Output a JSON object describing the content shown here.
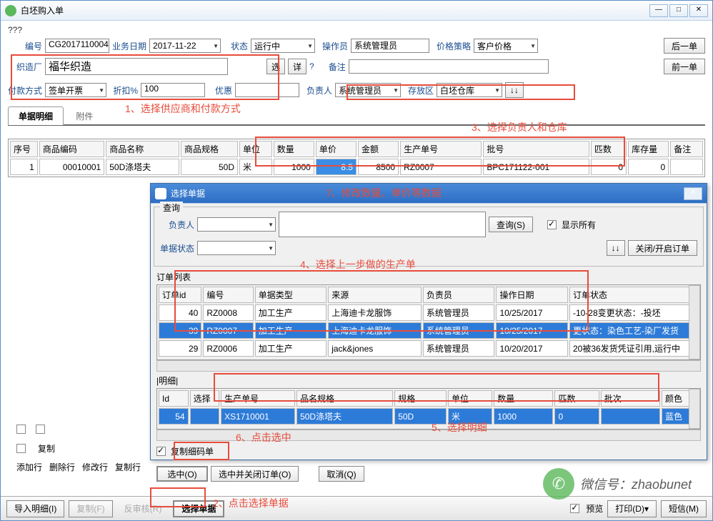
{
  "win": {
    "title": "白坯购入单",
    "min": "—",
    "max": "□",
    "close": "✕",
    "q": "???"
  },
  "hdr": {
    "no_lbl": "编号",
    "no": "CG2017110004",
    "date_lbl": "业务日期",
    "date": "2017-11-22",
    "state_lbl": "状态",
    "state": "运行中",
    "op_lbl": "操作员",
    "op": "系统管理员",
    "price_lbl": "价格策略",
    "price": "客户价格",
    "next": "后一单",
    "prev": "前一单",
    "maker_lbl": "织造厂",
    "maker": "福华织造",
    "sel": "选",
    "detail": "详",
    "help": "?",
    "memo_lbl": "备注",
    "pay_lbl": "付款方式",
    "pay": "签单开票",
    "disc_lbl": "折扣%",
    "disc": "100",
    "pref_lbl": "优惠",
    "resp_lbl": "负责人",
    "resp": "系统管理员",
    "store_lbl": "存放区",
    "store": "白坯仓库",
    "arrows": "↓↓"
  },
  "ann": {
    "a1": "1、选择供应商和付款方式",
    "a2": "2、点击选择单据",
    "a3": "3、选择负责人和仓库",
    "a4": "4、选择上一步做的生产单",
    "a5": "5、选择明细",
    "a6": "6、点击选中",
    "a7": "7、修改数量、单价等数据"
  },
  "tabs": {
    "t1": "单据明细",
    "t2": "附件"
  },
  "grid1": {
    "cols": [
      "序号",
      "商品编码",
      "商品名称",
      "商品规格",
      "单位",
      "数量",
      "单价",
      "金额",
      "生产单号",
      "批号",
      "匹数",
      "库存量",
      "备注"
    ],
    "row": [
      "1",
      "00010001",
      "50D涤塔夫",
      "50D",
      "米",
      "1000",
      "8.5",
      "8500",
      "RZ0007",
      "BPC171122-001",
      "0",
      "0",
      ""
    ]
  },
  "dlg": {
    "title": "选择单据",
    "close": "✕",
    "q_legend": "查询",
    "resp_lbl": "负责人",
    "state_lbl": "单据状态",
    "search": "查询(S)",
    "show": "显示所有",
    "toggle": "关闭/开启订单",
    "arrows": "↓↓",
    "list_lbl": "订单列表",
    "cols": [
      "订单id",
      "编号",
      "单据类型",
      "来源",
      "负责员",
      "操作日期",
      "订单状态"
    ],
    "rows": [
      [
        "40",
        "RZ0008",
        "加工生产",
        "上海迪卡龙服饰",
        "系统管理员",
        "10/25/2017",
        "-10-28变更状态：-投坯"
      ],
      [
        "39",
        "RZ0007",
        "加工生产",
        "上海迪卡龙服饰",
        "系统管理员",
        "10/25/2017",
        "更状态：染色工艺-染厂发货"
      ],
      [
        "29",
        "RZ0006",
        "加工生产",
        "jack&jones",
        "系统管理员",
        "10/20/2017",
        "20被36发货凭证引用,运行中"
      ]
    ],
    "det_lbl": "|明细|",
    "dcols": [
      "Id",
      "选择",
      "生产单号",
      "品名规格",
      "规格",
      "单位",
      "数量",
      "匹数",
      "批次",
      "颜色"
    ],
    "drow": [
      "54",
      "",
      "XS1710001",
      "50D涤塔夫",
      "50D",
      "米",
      "1000",
      "0",
      "",
      "蓝色"
    ],
    "copy": "复制细码单",
    "ok": "选中(O)",
    "okclose": "选中并关闭订单(O)",
    "cancel": "取消(Q)"
  },
  "ft": {
    "copy": "复制",
    "add": "添加行",
    "del": "删除行",
    "mod": "修改行",
    "cpr": "复制行",
    "imp": "导入明细(I)",
    "cp2": "复制(F)",
    "rev": "反审核(R)",
    "pick": "选择单据",
    "prev": "预览",
    "print": "打印(D)",
    "sms": "短信(M)"
  },
  "wm": "微信号：zhaobunet"
}
